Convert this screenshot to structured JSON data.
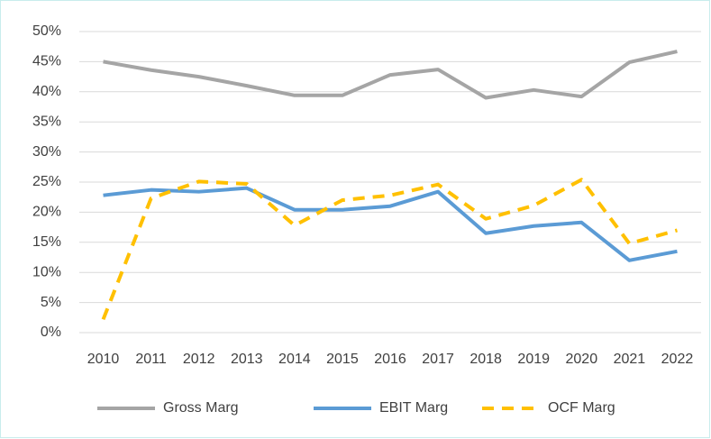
{
  "chart_data": {
    "type": "line",
    "categories": [
      "2010",
      "2011",
      "2012",
      "2013",
      "2014",
      "2015",
      "2016",
      "2017",
      "2018",
      "2019",
      "2020",
      "2021",
      "2022"
    ],
    "series": [
      {
        "name": "Gross Marg",
        "color": "#a5a5a5",
        "dash": false,
        "values": [
          45,
          43.6,
          42.5,
          41,
          39.4,
          39.4,
          42.8,
          43.7,
          39,
          40.3,
          39.2,
          44.9,
          46.7
        ]
      },
      {
        "name": "EBIT Marg",
        "color": "#5b9bd5",
        "dash": false,
        "values": [
          22.8,
          23.7,
          23.4,
          24,
          20.4,
          20.4,
          21,
          23.4,
          16.5,
          17.7,
          18.3,
          12,
          13.5
        ]
      },
      {
        "name": "OCF Marg",
        "color": "#ffc000",
        "dash": true,
        "values": [
          2.2,
          22.3,
          25.1,
          24.7,
          17.8,
          22,
          22.8,
          24.6,
          18.9,
          21.1,
          25.4,
          14.8,
          17
        ]
      }
    ],
    "ylim": [
      0,
      50
    ],
    "yticks": [
      {
        "value": 0,
        "label": "0%"
      },
      {
        "value": 5,
        "label": "5%"
      },
      {
        "value": 10,
        "label": "10%"
      },
      {
        "value": 15,
        "label": "15%"
      },
      {
        "value": 20,
        "label": "20%"
      },
      {
        "value": 25,
        "label": "25%"
      },
      {
        "value": 30,
        "label": "30%"
      },
      {
        "value": 35,
        "label": "35%"
      },
      {
        "value": 40,
        "label": "40%"
      },
      {
        "value": 45,
        "label": "45%"
      },
      {
        "value": 50,
        "label": "50%"
      }
    ],
    "grid": true,
    "legend": "bottom"
  }
}
